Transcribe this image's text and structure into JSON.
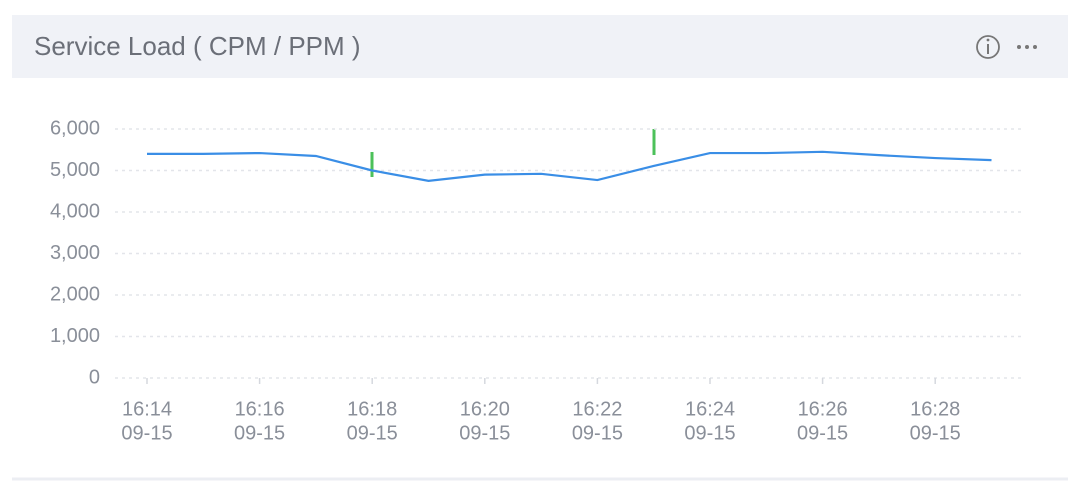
{
  "chart_data": {
    "type": "line",
    "title": "Service Load ( CPM / PPM )",
    "categories": [
      [
        "16:14",
        "09-15"
      ],
      null,
      [
        "16:16",
        "09-15"
      ],
      null,
      [
        "16:18",
        "09-15"
      ],
      null,
      [
        "16:20",
        "09-15"
      ],
      null,
      [
        "16:22",
        "09-15"
      ],
      null,
      [
        "16:24",
        "09-15"
      ],
      null,
      [
        "16:26",
        "09-15"
      ],
      null,
      [
        "16:28",
        "09-15"
      ],
      null
    ],
    "series": [
      {
        "color": "#3a8ee6",
        "values": [
          5400,
          5400,
          5420,
          5350,
          5000,
          4750,
          4900,
          4920,
          4770,
          5110,
          5420,
          5420,
          5450,
          5370,
          5300,
          5250
        ]
      }
    ],
    "ylim": [
      0,
      6000
    ],
    "yticks": [
      0,
      {
        "value": 1000,
        "label": "1,000"
      },
      {
        "value": 2000,
        "label": "2,000"
      },
      {
        "value": 3000,
        "label": "3,000"
      },
      {
        "value": 4000,
        "label": "4,000"
      },
      {
        "value": 5000,
        "label": "5,000"
      },
      {
        "value": 6000,
        "label": "6,000"
      }
    ],
    "grid": true
  }
}
